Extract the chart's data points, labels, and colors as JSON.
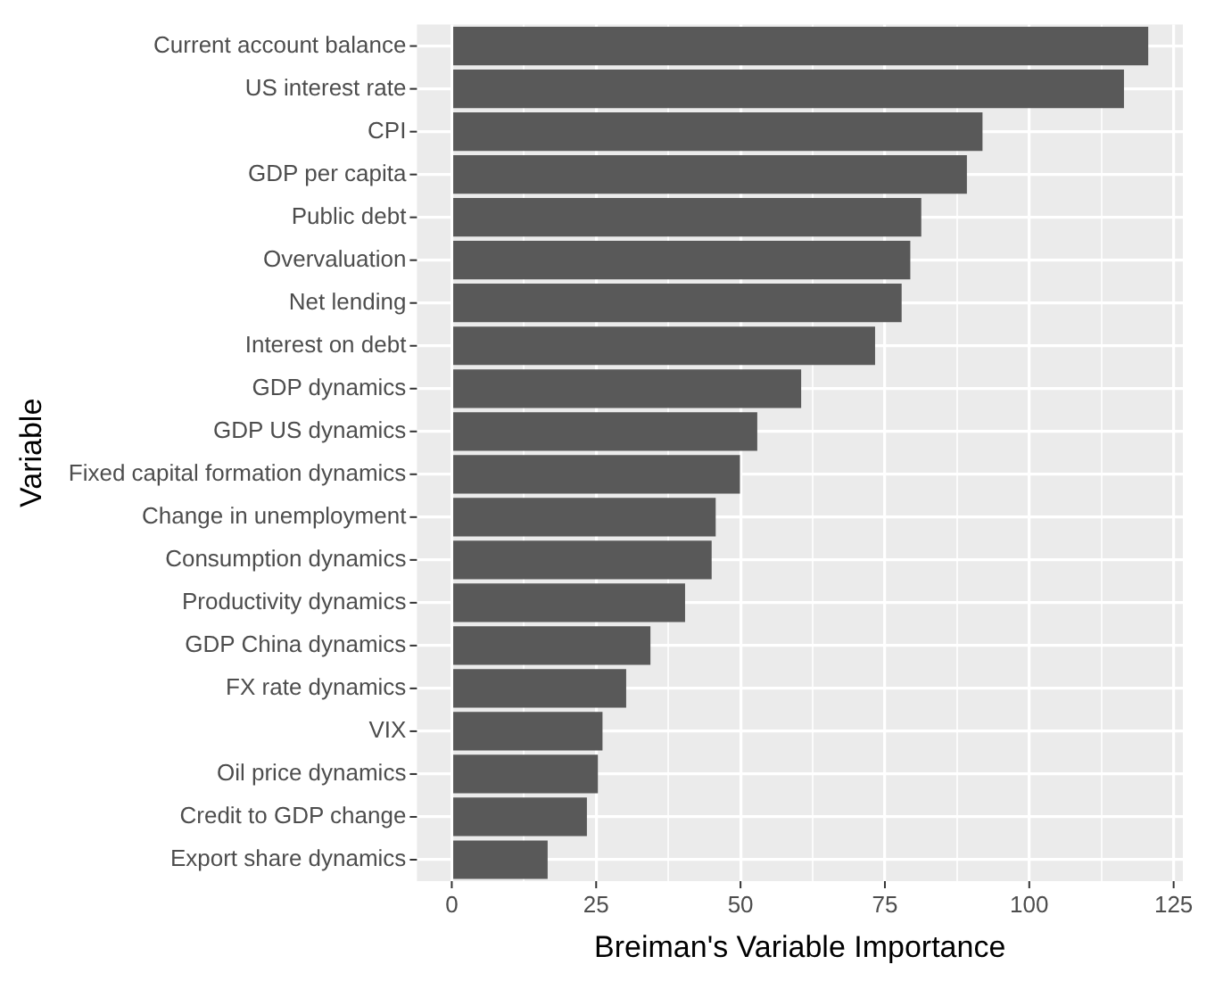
{
  "chart_data": {
    "type": "bar",
    "orientation": "horizontal",
    "xlabel": "Breiman's Variable Importance",
    "ylabel": "Variable",
    "categories": [
      "Current account balance",
      "US interest rate",
      "CPI",
      "GDP per capita",
      "Public debt",
      "Overvaluation",
      "Net lending",
      "Interest on debt",
      "GDP dynamics",
      "GDP US dynamics",
      "Fixed capital formation dynamics",
      "Change in unemployment",
      "Consumption dynamics",
      "Productivity dynamics",
      "GDP China dynamics",
      "FX rate dynamics",
      "VIX",
      "Oil price dynamics",
      "Credit to GDP change",
      "Export share dynamics"
    ],
    "values": [
      120.6,
      116.4,
      91.9,
      89.2,
      81.3,
      79.4,
      77.9,
      73.3,
      60.5,
      52.9,
      49.9,
      45.7,
      45.0,
      40.4,
      34.4,
      30.2,
      26.1,
      25.3,
      23.4,
      16.6
    ],
    "color": "#595959",
    "xlim": [
      -6.03,
      126.6
    ],
    "xticks": [
      0,
      {
        "value": 12.5,
        "label": null
      },
      25,
      {
        "value": 37.5,
        "label": null
      },
      50,
      {
        "value": 62.5,
        "label": null
      },
      75,
      {
        "value": 87.5,
        "label": null
      },
      100,
      {
        "value": 112.5,
        "label": null
      },
      125
    ],
    "grid": true,
    "legend": false
  }
}
